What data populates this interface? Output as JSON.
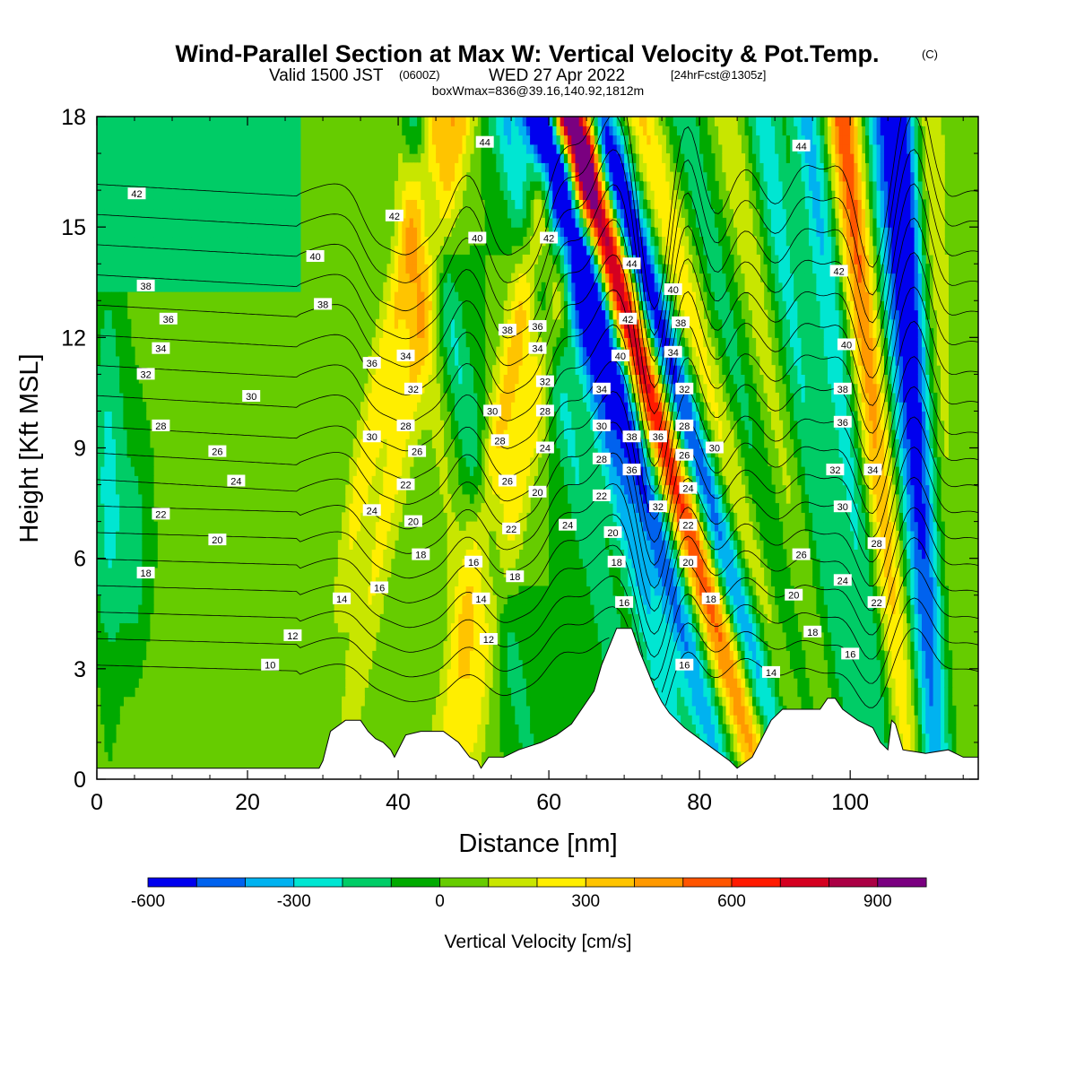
{
  "chart_data": {
    "type": "contour",
    "title": "Wind-Parallel Section at Max W: Vertical Velocity & Pot.Temp.",
    "copyright_mark": "(C)",
    "subtitle": {
      "prefix": "Valid 1500 JST",
      "utc": "(0600Z)",
      "date": "WED 27 Apr 2022",
      "forecast": "[24hrFcst@1305z]"
    },
    "box_note": "boxWmax=836@39.16,140.92,1812m",
    "xlabel": "Distance [nm]",
    "ylabel": "Height [Kft MSL]",
    "xlim": [
      0,
      117
    ],
    "ylim": [
      0,
      18
    ],
    "xticks": [
      0,
      20,
      40,
      60,
      80,
      100
    ],
    "yticks": [
      0,
      3,
      6,
      9,
      12,
      15,
      18
    ],
    "colorbar": {
      "label": "Vertical Velocity [cm/s]",
      "levels": [
        -600,
        -500,
        -400,
        -300,
        -200,
        -100,
        0,
        100,
        200,
        300,
        400,
        500,
        600,
        700,
        800,
        900,
        1000
      ],
      "colors": [
        "#0000ee",
        "#0062ee",
        "#00b2f0",
        "#00e6d2",
        "#00cc66",
        "#00aa00",
        "#66cc00",
        "#c8e600",
        "#ffee00",
        "#ffc400",
        "#ff9900",
        "#ff5500",
        "#ff1a00",
        "#d40020",
        "#aa0044",
        "#7a0080"
      ],
      "tick_values": [
        -600,
        -300,
        0,
        300,
        600,
        900
      ],
      "tick_labels": [
        "-600",
        "-300",
        "0",
        "300",
        "600",
        "900"
      ]
    },
    "terrain": [
      [
        0,
        0.3
      ],
      [
        29.5,
        0.3
      ],
      [
        30,
        0.5
      ],
      [
        31,
        1.3
      ],
      [
        33,
        1.6
      ],
      [
        35,
        1.6
      ],
      [
        36,
        1.3
      ],
      [
        37,
        1.1
      ],
      [
        38,
        1.0
      ],
      [
        39,
        0.8
      ],
      [
        39.5,
        0.6
      ],
      [
        41,
        1.2
      ],
      [
        43,
        1.3
      ],
      [
        46,
        1.3
      ],
      [
        48,
        1.0
      ],
      [
        49.5,
        0.6
      ],
      [
        50.5,
        0.5
      ],
      [
        51,
        0.3
      ],
      [
        52,
        0.6
      ],
      [
        54,
        0.6
      ],
      [
        56,
        0.8
      ],
      [
        59,
        1.0
      ],
      [
        61,
        1.2
      ],
      [
        63,
        1.5
      ],
      [
        64,
        1.8
      ],
      [
        66,
        2.4
      ],
      [
        67,
        3.1
      ],
      [
        68,
        3.6
      ],
      [
        69,
        4.1
      ],
      [
        71,
        4.1
      ],
      [
        72,
        3.5
      ],
      [
        73,
        3.0
      ],
      [
        74,
        2.5
      ],
      [
        75,
        2.1
      ],
      [
        76,
        1.8
      ],
      [
        77,
        1.6
      ],
      [
        78,
        1.4
      ],
      [
        80,
        1.1
      ],
      [
        82,
        0.8
      ],
      [
        84,
        0.5
      ],
      [
        85,
        0.3
      ],
      [
        87,
        0.6
      ],
      [
        88,
        1.0
      ],
      [
        89.5,
        1.6
      ],
      [
        91,
        1.9
      ],
      [
        96,
        1.9
      ],
      [
        97,
        2.2
      ],
      [
        98,
        2.2
      ],
      [
        99,
        1.9
      ],
      [
        101,
        1.6
      ],
      [
        103,
        1.4
      ],
      [
        104,
        1.0
      ],
      [
        105,
        0.8
      ],
      [
        105.5,
        1.6
      ],
      [
        106,
        1.5
      ],
      [
        107,
        0.8
      ],
      [
        110,
        0.7
      ],
      [
        113,
        0.8
      ],
      [
        115,
        0.6
      ],
      [
        117,
        0.6
      ]
    ],
    "theta_contours": [
      {
        "level": 10
      },
      {
        "level": 12
      },
      {
        "level": 14
      },
      {
        "level": 16
      },
      {
        "level": 18
      },
      {
        "level": 20
      },
      {
        "level": 22
      },
      {
        "level": 24
      },
      {
        "level": 26
      },
      {
        "level": 28
      },
      {
        "level": 30
      },
      {
        "level": 32
      },
      {
        "level": 34
      },
      {
        "level": 36
      },
      {
        "level": 38
      },
      {
        "level": 40
      },
      {
        "level": 42
      },
      {
        "level": 44
      }
    ],
    "contour_labels": [
      {
        "text": "42",
        "x": 5.3,
        "y": 15.9
      },
      {
        "text": "38",
        "x": 6.5,
        "y": 13.4
      },
      {
        "text": "36",
        "x": 9.5,
        "y": 12.5
      },
      {
        "text": "34",
        "x": 8.5,
        "y": 11.7
      },
      {
        "text": "32",
        "x": 6.5,
        "y": 11.0
      },
      {
        "text": "30",
        "x": 20.5,
        "y": 10.4
      },
      {
        "text": "28",
        "x": 8.5,
        "y": 9.6
      },
      {
        "text": "26",
        "x": 16.0,
        "y": 8.9
      },
      {
        "text": "24",
        "x": 18.5,
        "y": 8.1
      },
      {
        "text": "22",
        "x": 8.5,
        "y": 7.2
      },
      {
        "text": "20",
        "x": 16.0,
        "y": 6.5
      },
      {
        "text": "18",
        "x": 6.5,
        "y": 5.6
      },
      {
        "text": "14",
        "x": 32.5,
        "y": 4.9
      },
      {
        "text": "12",
        "x": 26.0,
        "y": 3.9
      },
      {
        "text": "10",
        "x": 23.0,
        "y": 3.1
      },
      {
        "text": "40",
        "x": 29.0,
        "y": 14.2
      },
      {
        "text": "38",
        "x": 30.0,
        "y": 12.9
      },
      {
        "text": "42",
        "x": 39.5,
        "y": 15.3
      },
      {
        "text": "36",
        "x": 36.5,
        "y": 11.3
      },
      {
        "text": "34",
        "x": 41.0,
        "y": 11.5
      },
      {
        "text": "32",
        "x": 42.0,
        "y": 10.6
      },
      {
        "text": "30",
        "x": 36.5,
        "y": 9.3
      },
      {
        "text": "28",
        "x": 41.0,
        "y": 9.6
      },
      {
        "text": "26",
        "x": 42.5,
        "y": 8.9
      },
      {
        "text": "24",
        "x": 36.5,
        "y": 7.3
      },
      {
        "text": "22",
        "x": 41.0,
        "y": 8.0
      },
      {
        "text": "20",
        "x": 42.0,
        "y": 7.0
      },
      {
        "text": "18",
        "x": 43.0,
        "y": 6.1
      },
      {
        "text": "16",
        "x": 37.5,
        "y": 5.2
      },
      {
        "text": "44",
        "x": 51.5,
        "y": 17.3
      },
      {
        "text": "40",
        "x": 50.5,
        "y": 14.7
      },
      {
        "text": "42",
        "x": 60.0,
        "y": 14.7
      },
      {
        "text": "38",
        "x": 54.5,
        "y": 12.2
      },
      {
        "text": "36",
        "x": 58.5,
        "y": 12.3
      },
      {
        "text": "34",
        "x": 58.5,
        "y": 11.7
      },
      {
        "text": "32",
        "x": 59.5,
        "y": 10.8
      },
      {
        "text": "30",
        "x": 52.5,
        "y": 10.0
      },
      {
        "text": "28",
        "x": 59.5,
        "y": 10.0
      },
      {
        "text": "28",
        "x": 53.5,
        "y": 9.2
      },
      {
        "text": "26",
        "x": 54.5,
        "y": 8.1
      },
      {
        "text": "24",
        "x": 59.5,
        "y": 9.0
      },
      {
        "text": "22",
        "x": 55.0,
        "y": 6.8
      },
      {
        "text": "20",
        "x": 58.5,
        "y": 7.8
      },
      {
        "text": "18",
        "x": 55.5,
        "y": 5.5
      },
      {
        "text": "16",
        "x": 50.0,
        "y": 5.9
      },
      {
        "text": "14",
        "x": 51.0,
        "y": 4.9
      },
      {
        "text": "12",
        "x": 52.0,
        "y": 3.8
      },
      {
        "text": "24",
        "x": 62.5,
        "y": 6.9
      },
      {
        "text": "44",
        "x": 71.0,
        "y": 14.0
      },
      {
        "text": "42",
        "x": 70.5,
        "y": 12.5
      },
      {
        "text": "40",
        "x": 69.5,
        "y": 11.5
      },
      {
        "text": "34",
        "x": 67.0,
        "y": 10.6
      },
      {
        "text": "30",
        "x": 67.0,
        "y": 9.6
      },
      {
        "text": "28",
        "x": 67.0,
        "y": 8.7
      },
      {
        "text": "22",
        "x": 67.0,
        "y": 7.7
      },
      {
        "text": "20",
        "x": 68.5,
        "y": 6.7
      },
      {
        "text": "18",
        "x": 69.0,
        "y": 5.9
      },
      {
        "text": "16",
        "x": 70.0,
        "y": 4.8
      },
      {
        "text": "38",
        "x": 71.0,
        "y": 9.3
      },
      {
        "text": "36",
        "x": 71.0,
        "y": 8.4
      },
      {
        "text": "36",
        "x": 74.5,
        "y": 9.3
      },
      {
        "text": "32",
        "x": 74.5,
        "y": 7.4
      },
      {
        "text": "40",
        "x": 76.5,
        "y": 13.3
      },
      {
        "text": "38",
        "x": 77.5,
        "y": 12.4
      },
      {
        "text": "34",
        "x": 76.5,
        "y": 11.6
      },
      {
        "text": "32",
        "x": 78.0,
        "y": 10.6
      },
      {
        "text": "28",
        "x": 78.0,
        "y": 9.6
      },
      {
        "text": "26",
        "x": 78.0,
        "y": 8.8
      },
      {
        "text": "24",
        "x": 78.5,
        "y": 7.9
      },
      {
        "text": "22",
        "x": 78.5,
        "y": 6.9
      },
      {
        "text": "20",
        "x": 78.5,
        "y": 5.9
      },
      {
        "text": "18",
        "x": 81.5,
        "y": 4.9
      },
      {
        "text": "16",
        "x": 78.0,
        "y": 3.1
      },
      {
        "text": "30",
        "x": 82.0,
        "y": 9.0
      },
      {
        "text": "44",
        "x": 93.5,
        "y": 17.2
      },
      {
        "text": "42",
        "x": 98.5,
        "y": 13.8
      },
      {
        "text": "40",
        "x": 99.5,
        "y": 11.8
      },
      {
        "text": "38",
        "x": 99.0,
        "y": 10.6
      },
      {
        "text": "36",
        "x": 99.0,
        "y": 9.7
      },
      {
        "text": "32",
        "x": 98.0,
        "y": 8.4
      },
      {
        "text": "30",
        "x": 99.0,
        "y": 7.4
      },
      {
        "text": "34",
        "x": 103.0,
        "y": 8.4
      },
      {
        "text": "28",
        "x": 103.5,
        "y": 6.4
      },
      {
        "text": "26",
        "x": 93.5,
        "y": 6.1
      },
      {
        "text": "24",
        "x": 99.0,
        "y": 5.4
      },
      {
        "text": "22",
        "x": 103.5,
        "y": 4.8
      },
      {
        "text": "20",
        "x": 92.5,
        "y": 5.0
      },
      {
        "text": "18",
        "x": 95.0,
        "y": 4.0
      },
      {
        "text": "16",
        "x": 100.0,
        "y": 3.4
      },
      {
        "text": "14",
        "x": 89.5,
        "y": 2.9
      }
    ]
  }
}
